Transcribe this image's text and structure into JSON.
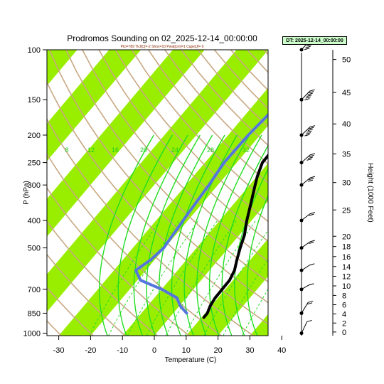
{
  "chart_data": {
    "type": "line",
    "title": "Prodromos Sounding on 02_2025-12-14_00:00:00",
    "subtitle": "Plcl=789 Tlcl[C]=-2 Shox=10 Pwat[cm]=1 Cape[J]= 0",
    "badge": "DT: 2025-12-14_00:00:00",
    "xlabel": "Temperature (C)",
    "ylabel": "P (hPa)",
    "y2label": "Height (1000 Feet)",
    "x_ticks": [
      "-30",
      "-20",
      "-10",
      "0",
      "10",
      "20",
      "30",
      "40"
    ],
    "p_ticks": [
      "100",
      "150",
      "200",
      "250",
      "300",
      "400",
      "500",
      "700",
      "850",
      "1000"
    ],
    "height_ticks": [
      "0",
      "2",
      "4",
      "6",
      "8",
      "10",
      "12",
      "14",
      "16",
      "18",
      "20",
      "25",
      "30",
      "35",
      "40",
      "45",
      "50"
    ],
    "mixing_ratio_labels": [
      "8",
      "12",
      "16",
      "20",
      "24",
      "28",
      "32"
    ],
    "xlim": [
      -33,
      45
    ],
    "plim": [
      1020,
      100
    ],
    "series": [
      {
        "color": "#000000",
        "points": [
          {
            "p": 100,
            "t": 8
          },
          {
            "p": 120,
            "t": 7
          },
          {
            "p": 150,
            "t": 3
          },
          {
            "p": 180,
            "t": -4
          },
          {
            "p": 200,
            "t": -7
          },
          {
            "p": 230,
            "t": -10
          },
          {
            "p": 250,
            "t": -10
          },
          {
            "p": 280,
            "t": -8
          },
          {
            "p": 300,
            "t": -6.5
          },
          {
            "p": 350,
            "t": -3
          },
          {
            "p": 400,
            "t": 0
          },
          {
            "p": 450,
            "t": 3
          },
          {
            "p": 500,
            "t": 5
          },
          {
            "p": 550,
            "t": 7
          },
          {
            "p": 600,
            "t": 9
          },
          {
            "p": 650,
            "t": 10
          },
          {
            "p": 700,
            "t": 10
          },
          {
            "p": 750,
            "t": 10
          },
          {
            "p": 800,
            "t": 10.5
          },
          {
            "p": 850,
            "t": 11.5
          },
          {
            "p": 880,
            "t": 11.5
          }
        ]
      },
      {
        "color": "#5577dd",
        "points": [
          {
            "p": 100,
            "t": -5.5
          },
          {
            "p": 120,
            "t": -15
          },
          {
            "p": 150,
            "t": -20
          },
          {
            "p": 170,
            "t": -20.5
          },
          {
            "p": 200,
            "t": -21.5
          },
          {
            "p": 250,
            "t": -22
          },
          {
            "p": 300,
            "t": -21
          },
          {
            "p": 350,
            "t": -20.5
          },
          {
            "p": 400,
            "t": -20
          },
          {
            "p": 450,
            "t": -19.5
          },
          {
            "p": 500,
            "t": -19
          },
          {
            "p": 550,
            "t": -20
          },
          {
            "p": 600,
            "t": -22
          },
          {
            "p": 650,
            "t": -18
          },
          {
            "p": 700,
            "t": -9
          },
          {
            "p": 750,
            "t": -2
          },
          {
            "p": 800,
            "t": 1
          },
          {
            "p": 850,
            "t": 5
          }
        ]
      }
    ],
    "wind_barbs": [
      {
        "p": 100,
        "dir": 250,
        "spd": 70
      },
      {
        "p": 150,
        "dir": 255,
        "spd": 80
      },
      {
        "p": 200,
        "dir": 260,
        "spd": 60
      },
      {
        "p": 250,
        "dir": 265,
        "spd": 40
      },
      {
        "p": 300,
        "dir": 270,
        "spd": 25
      },
      {
        "p": 400,
        "dir": 275,
        "spd": 20
      },
      {
        "p": 500,
        "dir": 280,
        "spd": 15
      },
      {
        "p": 600,
        "dir": 290,
        "spd": 10
      },
      {
        "p": 700,
        "dir": 300,
        "spd": 10
      },
      {
        "p": 850,
        "dir": 230,
        "spd": 15
      },
      {
        "p": 1000,
        "dir": 220,
        "spd": 10
      }
    ],
    "grid": true
  }
}
